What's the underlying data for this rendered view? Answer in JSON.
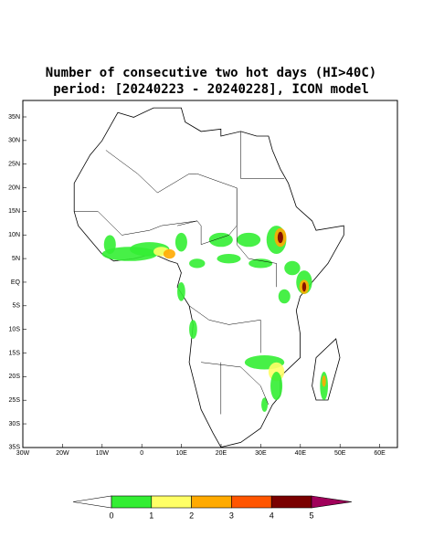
{
  "title": {
    "line1": "Number of consecutive two hot days (HI>40C)",
    "line2": "period: [20240223 - 20240228], ICON model"
  },
  "axes": {
    "lat_labels": [
      "35N",
      "30N",
      "25N",
      "20N",
      "15N",
      "10N",
      "5N",
      "EQ",
      "5S",
      "10S",
      "15S",
      "20S",
      "25S",
      "30S",
      "35S"
    ],
    "lon_labels": [
      "30W",
      "20W",
      "10W",
      "0",
      "10E",
      "20E",
      "30E",
      "40E",
      "50E",
      "60E"
    ]
  },
  "colorbar": {
    "labels": [
      "0",
      "1",
      "2",
      "3",
      "4",
      "5"
    ],
    "colors": [
      "#ffffff",
      "#33ee33",
      "#ffff66",
      "#ffaa00",
      "#ff5500",
      "#7a0000",
      "#a0005a"
    ]
  }
}
